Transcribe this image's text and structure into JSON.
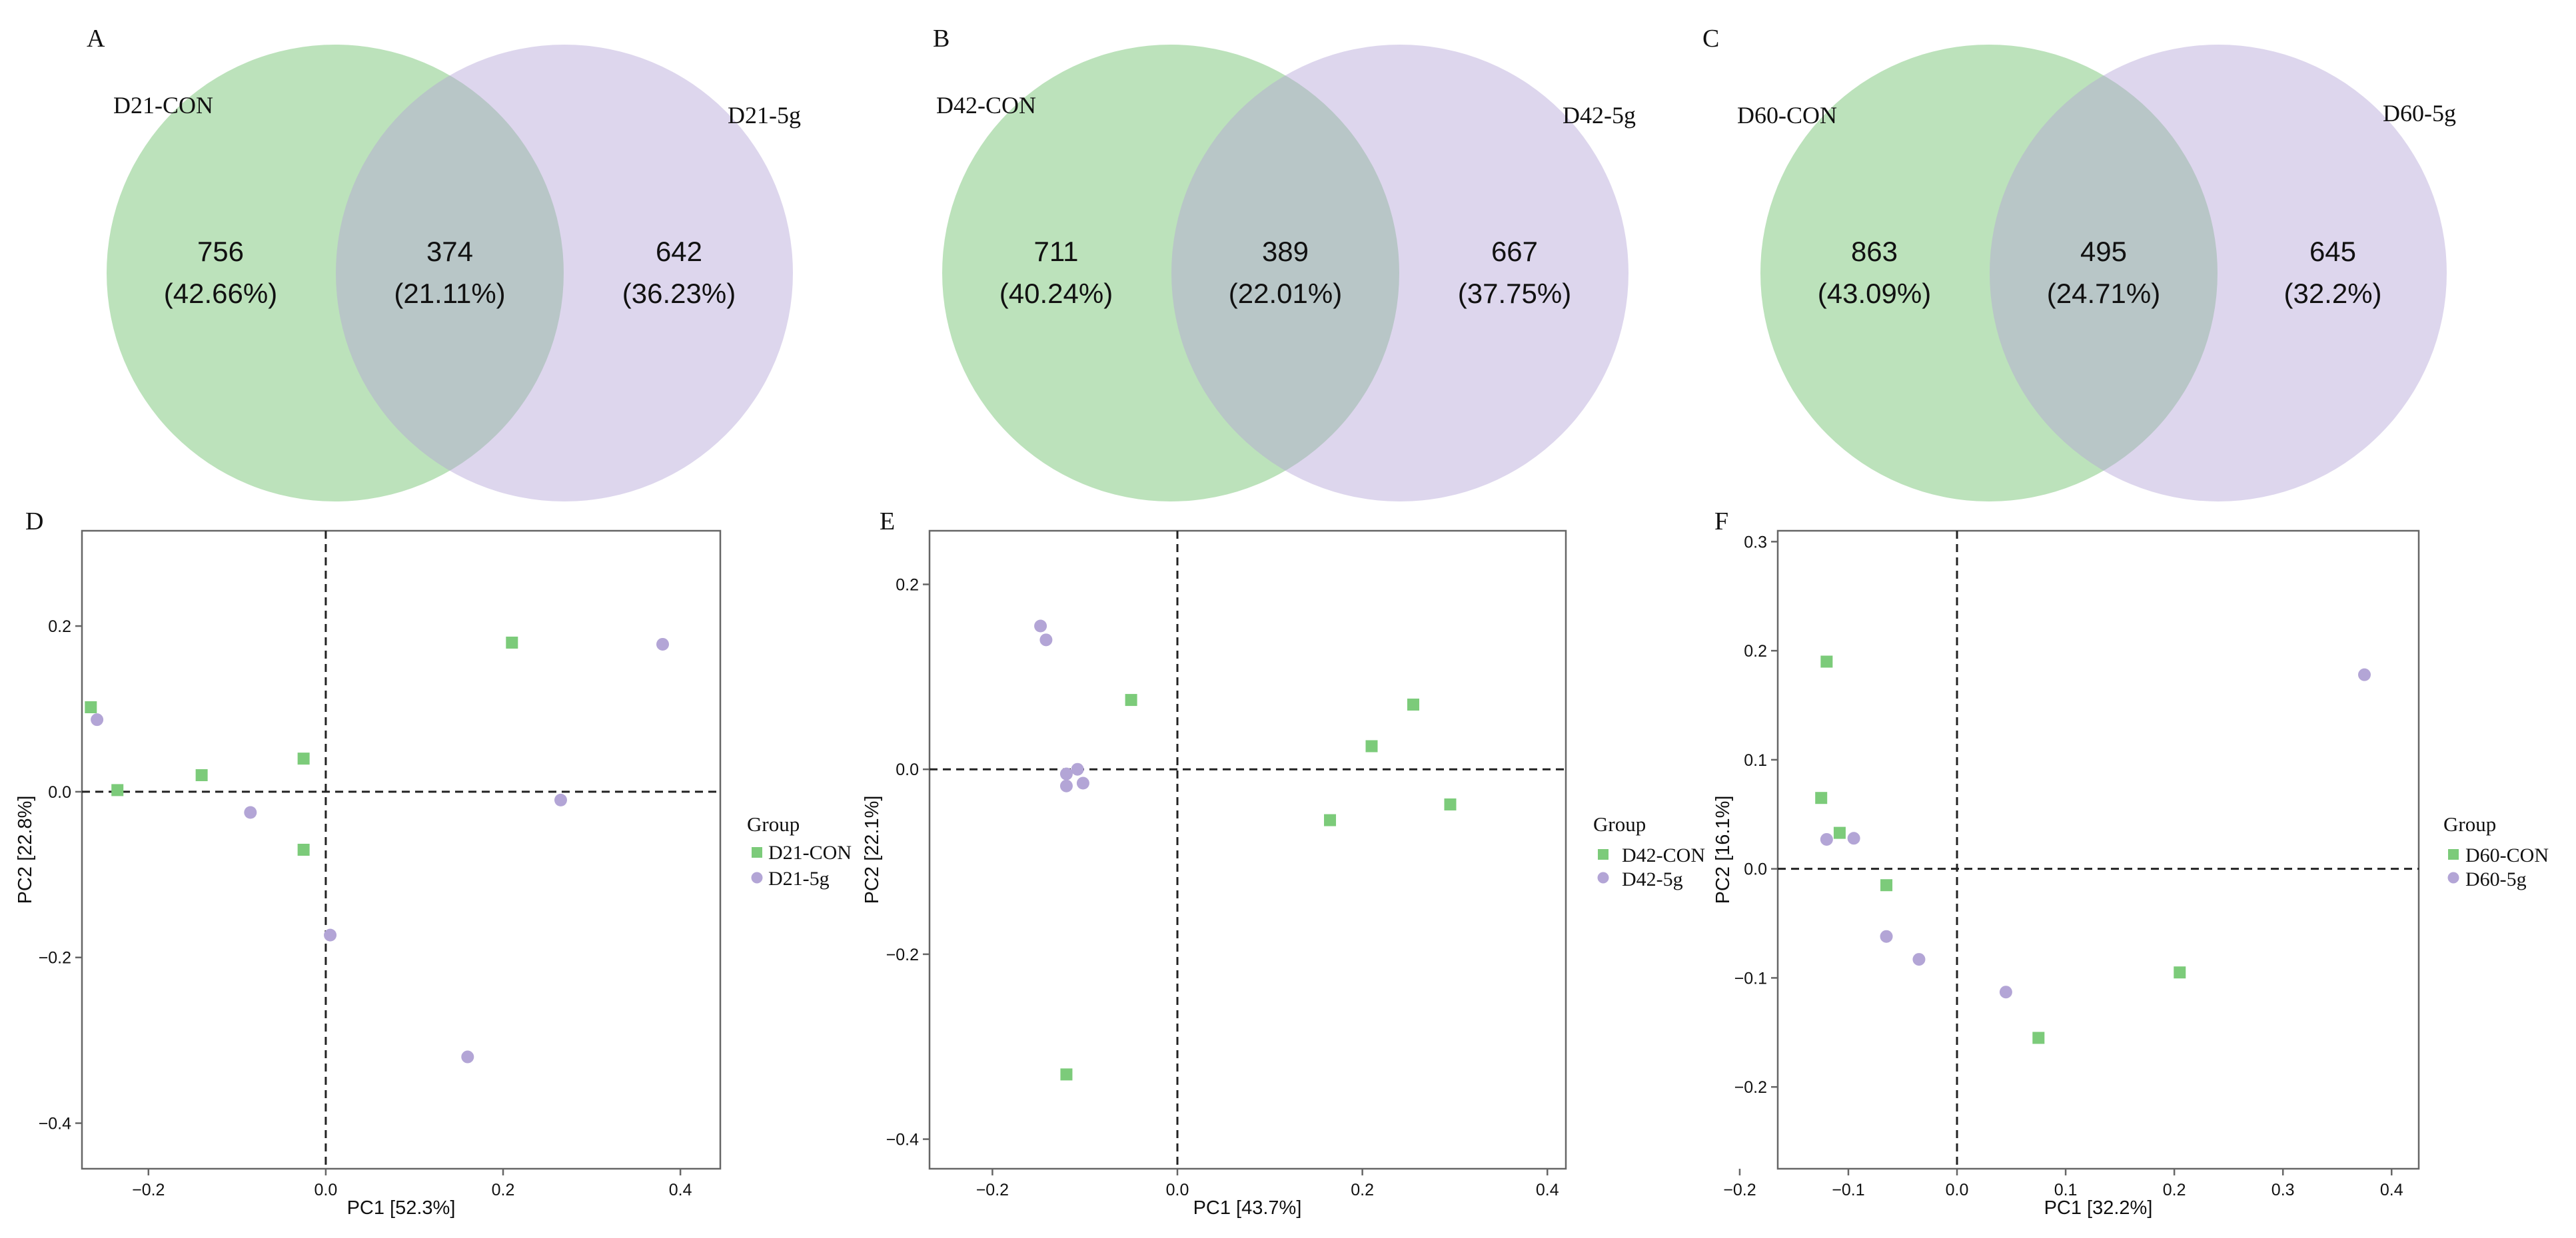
{
  "figure": {
    "venn": [
      {
        "panel": "A",
        "left_label": "D21-CON",
        "right_label": "D21-5g",
        "left_count": "756",
        "left_pct": "(42.66%)",
        "mid_count": "374",
        "mid_pct": "(21.11%)",
        "right_count": "642",
        "right_pct": "(36.23%)"
      },
      {
        "panel": "B",
        "left_label": "D42-CON",
        "right_label": "D42-5g",
        "left_count": "711",
        "left_pct": "(40.24%)",
        "mid_count": "389",
        "mid_pct": "(22.01%)",
        "right_count": "667",
        "right_pct": "(37.75%)"
      },
      {
        "panel": "C",
        "left_label": "D60-CON",
        "right_label": "D60-5g",
        "left_count": "863",
        "left_pct": "(43.09%)",
        "mid_count": "495",
        "mid_pct": "(24.71%)",
        "right_count": "645",
        "right_pct": "(32.2%)"
      }
    ],
    "pca": [
      {
        "panel": "D",
        "xlabel": "PC1 [52.3%]",
        "ylabel": "PC2 [22.8%]",
        "legend_title": "Group",
        "legend": [
          "D21-CON",
          "D21-5g"
        ],
        "xticks": [
          "−0.2",
          "0.0",
          "0.2",
          "0.4"
        ],
        "yticks": [
          "0.2",
          "0.0",
          "−0.2",
          "−0.4"
        ]
      },
      {
        "panel": "E",
        "xlabel": "PC1 [43.7%]",
        "ylabel": "PC2 [22.1%]",
        "legend_title": "Group",
        "legend": [
          "D42-CON",
          "D42-5g"
        ],
        "xticks": [
          "−0.2",
          "0.0",
          "0.2",
          "0.4"
        ],
        "yticks": [
          "0.2",
          "0.0",
          "−0.2",
          "−0.4"
        ]
      },
      {
        "panel": "F",
        "xlabel": "PC1 [32.2%]",
        "ylabel": "PC2 [16.1%]",
        "legend_title": "Group",
        "legend": [
          "D60-CON",
          "D60-5g"
        ],
        "xticks": [
          "−0.2",
          "−0.1",
          "0.0",
          "0.1",
          "0.2",
          "0.3",
          "0.4"
        ],
        "yticks": [
          "0.3",
          "0.2",
          "0.1",
          "0.0",
          "−0.1",
          "−0.2"
        ]
      }
    ]
  },
  "colors": {
    "con": "#7ccb7a",
    "fiveg": "#b3a5d6",
    "venn_con": "#b5dfb4",
    "venn_fiveg": "#d6cde6",
    "axis": "#555555",
    "text": "#111111"
  },
  "chart_data": [
    {
      "type": "venn",
      "panel": "A",
      "sets": [
        "D21-CON",
        "D21-5g"
      ],
      "only_left": 756,
      "intersection": 374,
      "only_right": 642,
      "percents": [
        42.66,
        21.11,
        36.23
      ]
    },
    {
      "type": "venn",
      "panel": "B",
      "sets": [
        "D42-CON",
        "D42-5g"
      ],
      "only_left": 711,
      "intersection": 389,
      "only_right": 667,
      "percents": [
        40.24,
        22.01,
        37.75
      ]
    },
    {
      "type": "venn",
      "panel": "C",
      "sets": [
        "D60-CON",
        "D60-5g"
      ],
      "only_left": 863,
      "intersection": 495,
      "only_right": 645,
      "percents": [
        43.09,
        24.71,
        32.2
      ]
    },
    {
      "type": "scatter",
      "panel": "D",
      "xlabel": "PC1 [52.3%]",
      "ylabel": "PC2 [22.8%]",
      "xlim": [
        -0.275,
        0.445
      ],
      "ylim": [
        -0.455,
        0.315
      ],
      "xticks": [
        -0.2,
        0.0,
        0.2,
        0.4
      ],
      "yticks": [
        0.2,
        0.0,
        -0.2,
        -0.4
      ],
      "series": [
        {
          "name": "D21-CON",
          "marker": "square",
          "points": [
            [
              -0.265,
              0.102
            ],
            [
              -0.235,
              0.002
            ],
            [
              -0.14,
              0.02
            ],
            [
              -0.025,
              0.04
            ],
            [
              -0.025,
              -0.07
            ],
            [
              0.21,
              0.18
            ]
          ]
        },
        {
          "name": "D21-5g",
          "marker": "circle",
          "points": [
            [
              -0.258,
              0.087
            ],
            [
              -0.085,
              -0.025
            ],
            [
              0.005,
              -0.173
            ],
            [
              0.16,
              -0.32
            ],
            [
              0.265,
              -0.01
            ],
            [
              0.38,
              0.178
            ]
          ]
        }
      ]
    },
    {
      "type": "scatter",
      "panel": "E",
      "xlabel": "PC1 [43.7%]",
      "ylabel": "PC2 [22.1%]",
      "xlim": [
        -0.268,
        0.42
      ],
      "ylim": [
        -0.432,
        0.258
      ],
      "xticks": [
        -0.2,
        0.0,
        0.2,
        0.4
      ],
      "yticks": [
        0.2,
        0.0,
        -0.2,
        -0.4
      ],
      "series": [
        {
          "name": "D42-CON",
          "marker": "square",
          "points": [
            [
              -0.05,
              0.075
            ],
            [
              -0.12,
              -0.33
            ],
            [
              0.165,
              -0.055
            ],
            [
              0.21,
              0.025
            ],
            [
              0.255,
              0.07
            ],
            [
              0.295,
              -0.038
            ]
          ]
        },
        {
          "name": "D42-5g",
          "marker": "circle",
          "points": [
            [
              -0.148,
              0.155
            ],
            [
              -0.142,
              0.14
            ],
            [
              -0.12,
              -0.005
            ],
            [
              -0.108,
              0.0
            ],
            [
              -0.12,
              -0.018
            ],
            [
              -0.102,
              -0.015
            ]
          ]
        }
      ]
    },
    {
      "type": "scatter",
      "panel": "F",
      "xlabel": "PC1 [32.2%]",
      "ylabel": "PC2 [16.1%]",
      "xlim": [
        -0.165,
        0.425
      ],
      "ylim": [
        -0.275,
        0.31
      ],
      "xticks": [
        -0.2,
        -0.1,
        0.0,
        0.1,
        0.2,
        0.3,
        0.4
      ],
      "yticks": [
        0.3,
        0.2,
        0.1,
        0.0,
        -0.1,
        -0.2
      ],
      "series": [
        {
          "name": "D60-CON",
          "marker": "square",
          "points": [
            [
              -0.12,
              0.19
            ],
            [
              -0.125,
              0.065
            ],
            [
              -0.108,
              0.033
            ],
            [
              -0.065,
              -0.015
            ],
            [
              0.075,
              -0.155
            ],
            [
              0.205,
              -0.095
            ]
          ]
        },
        {
          "name": "D60-5g",
          "marker": "circle",
          "points": [
            [
              -0.12,
              0.027
            ],
            [
              -0.095,
              0.028
            ],
            [
              -0.065,
              -0.062
            ],
            [
              -0.035,
              -0.083
            ],
            [
              0.045,
              -0.113
            ],
            [
              0.375,
              0.178
            ]
          ]
        }
      ]
    }
  ]
}
